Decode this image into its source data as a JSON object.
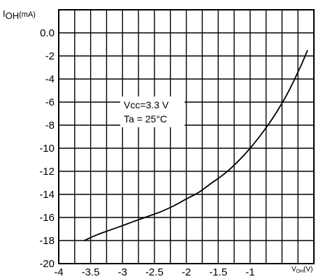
{
  "chart_data": {
    "type": "line",
    "y_label": {
      "main": "I",
      "sub": "OH",
      "unit": "(mA)"
    },
    "x_label": {
      "main": "V",
      "sub": "OH",
      "unit": "(V)"
    },
    "annotation": {
      "line1": "Vcc=3.3 V",
      "line2": "Ta = 25°C"
    },
    "xlim": [
      -4,
      0
    ],
    "ylim": [
      -20,
      2
    ],
    "x_ticks": [
      {
        "value": -4,
        "label": "-4"
      },
      {
        "value": -3.5,
        "label": "-3.5"
      },
      {
        "value": -3,
        "label": "-3"
      },
      {
        "value": -2.5,
        "label": "-2.5"
      },
      {
        "value": -2,
        "label": "-2"
      },
      {
        "value": -1.5,
        "label": "-1.5"
      },
      {
        "value": -1,
        "label": "-1"
      }
    ],
    "y_ticks": [
      {
        "value": 0,
        "label": "0.0"
      },
      {
        "value": -2,
        "label": "-2"
      },
      {
        "value": -4,
        "label": "-4"
      },
      {
        "value": -6,
        "label": "-6"
      },
      {
        "value": -8,
        "label": "-8"
      },
      {
        "value": -10,
        "label": "-10"
      },
      {
        "value": -12,
        "label": "-12"
      },
      {
        "value": -14,
        "label": "-14"
      },
      {
        "value": -16,
        "label": "-16"
      },
      {
        "value": -18,
        "label": "-18"
      },
      {
        "value": -20,
        "label": "-20"
      }
    ],
    "grid": true,
    "grid_step_x": 0.25,
    "grid_step_y": 2,
    "series": [
      {
        "color": "#000000",
        "points": [
          {
            "x": -3.6,
            "y": -18.0
          },
          {
            "x": -3.4,
            "y": -17.5
          },
          {
            "x": -3.2,
            "y": -17.1
          },
          {
            "x": -3.0,
            "y": -16.7
          },
          {
            "x": -2.8,
            "y": -16.3
          },
          {
            "x": -2.6,
            "y": -15.9
          },
          {
            "x": -2.4,
            "y": -15.5
          },
          {
            "x": -2.2,
            "y": -15.0
          },
          {
            "x": -2.0,
            "y": -14.4
          },
          {
            "x": -1.8,
            "y": -13.8
          },
          {
            "x": -1.6,
            "y": -13.0
          },
          {
            "x": -1.4,
            "y": -12.2
          },
          {
            "x": -1.2,
            "y": -11.2
          },
          {
            "x": -1.0,
            "y": -10.0
          },
          {
            "x": -0.8,
            "y": -8.6
          },
          {
            "x": -0.6,
            "y": -7.0
          },
          {
            "x": -0.4,
            "y": -5.1
          },
          {
            "x": -0.2,
            "y": -2.8
          },
          {
            "x": -0.1,
            "y": -1.5
          }
        ]
      }
    ]
  }
}
